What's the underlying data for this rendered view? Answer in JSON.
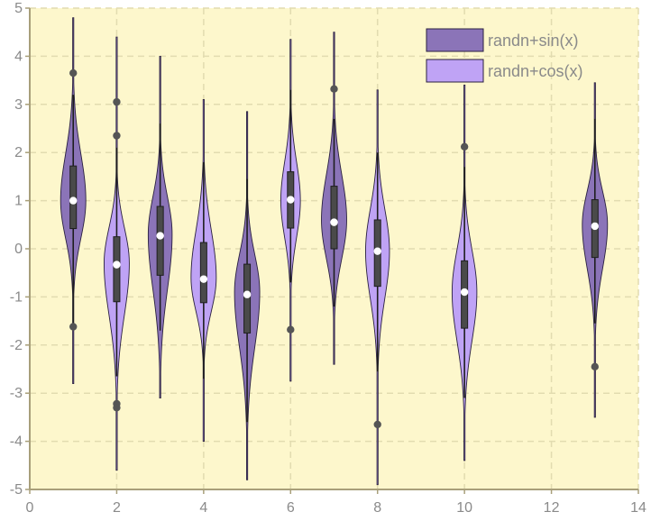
{
  "chart_data": {
    "type": "violin",
    "title": "",
    "xlabel": "",
    "ylabel": "",
    "xlim": [
      0,
      14
    ],
    "ylim": [
      -5,
      5
    ],
    "xticks": [
      0,
      2,
      4,
      6,
      8,
      10,
      12,
      14
    ],
    "yticks": [
      -5,
      -4,
      -3,
      -2,
      -1,
      0,
      1,
      2,
      3,
      4,
      5
    ],
    "grid": true,
    "background": "#fdf7cc",
    "legend": {
      "position": "top-right"
    },
    "series": [
      {
        "name": "randn+sin(x)",
        "color": "#8b74b8",
        "violins": [
          {
            "x": 1,
            "min": -2.8,
            "max": 4.8,
            "q1": 0.42,
            "median": 1.0,
            "q3": 1.72,
            "wlow": -1.6,
            "whigh": 3.2,
            "outliers": [
              3.65,
              -1.62
            ],
            "mode": 1.0,
            "width": 0.58
          },
          {
            "x": 3,
            "min": -3.1,
            "max": 4.0,
            "q1": -0.55,
            "median": 0.27,
            "q3": 0.88,
            "wlow": -1.7,
            "whigh": 2.6,
            "outliers": [],
            "mode": 0.3,
            "width": 0.55
          },
          {
            "x": 5,
            "min": -4.8,
            "max": 2.85,
            "q1": -1.75,
            "median": -0.95,
            "q3": -0.32,
            "wlow": -3.6,
            "whigh": 1.45,
            "outliers": [],
            "mode": -0.9,
            "width": 0.58
          },
          {
            "x": 7,
            "min": -2.4,
            "max": 4.5,
            "q1": 0.0,
            "median": 0.55,
            "q3": 1.3,
            "wlow": -1.2,
            "whigh": 2.7,
            "outliers": [
              3.32
            ],
            "mode": 0.6,
            "width": 0.58
          },
          {
            "x": 13,
            "min": -3.5,
            "max": 3.45,
            "q1": -0.18,
            "median": 0.47,
            "q3": 1.02,
            "wlow": -1.55,
            "whigh": 2.7,
            "outliers": [
              -2.45
            ],
            "mode": 0.5,
            "width": 0.58
          }
        ]
      },
      {
        "name": "randn+cos(x)",
        "color": "#bfa3f5",
        "violins": [
          {
            "x": 2,
            "min": -4.6,
            "max": 4.4,
            "q1": -1.1,
            "median": -0.33,
            "q3": 0.25,
            "wlow": -2.65,
            "whigh": 2.1,
            "outliers": [
              3.05,
              2.35,
              -3.22,
              -3.3
            ],
            "mode": -0.3,
            "width": 0.58
          },
          {
            "x": 4,
            "min": -4.0,
            "max": 3.1,
            "q1": -1.12,
            "median": -0.63,
            "q3": 0.13,
            "wlow": -2.7,
            "whigh": 1.8,
            "outliers": [],
            "mode": -0.6,
            "width": 0.58
          },
          {
            "x": 6,
            "min": -2.75,
            "max": 4.35,
            "q1": 0.43,
            "median": 1.02,
            "q3": 1.6,
            "wlow": -0.7,
            "whigh": 3.3,
            "outliers": [
              -1.68
            ],
            "mode": 1.0,
            "width": 0.45
          },
          {
            "x": 8,
            "min": -4.9,
            "max": 3.3,
            "q1": -0.78,
            "median": -0.05,
            "q3": 0.6,
            "wlow": -2.55,
            "whigh": 2.0,
            "outliers": [
              -3.65
            ],
            "mode": -0.05,
            "width": 0.55
          },
          {
            "x": 10,
            "min": -4.4,
            "max": 3.4,
            "q1": -1.65,
            "median": -0.9,
            "q3": -0.25,
            "wlow": -3.1,
            "whigh": 1.7,
            "outliers": [
              2.12
            ],
            "mode": -0.9,
            "width": 0.57
          }
        ]
      }
    ]
  }
}
